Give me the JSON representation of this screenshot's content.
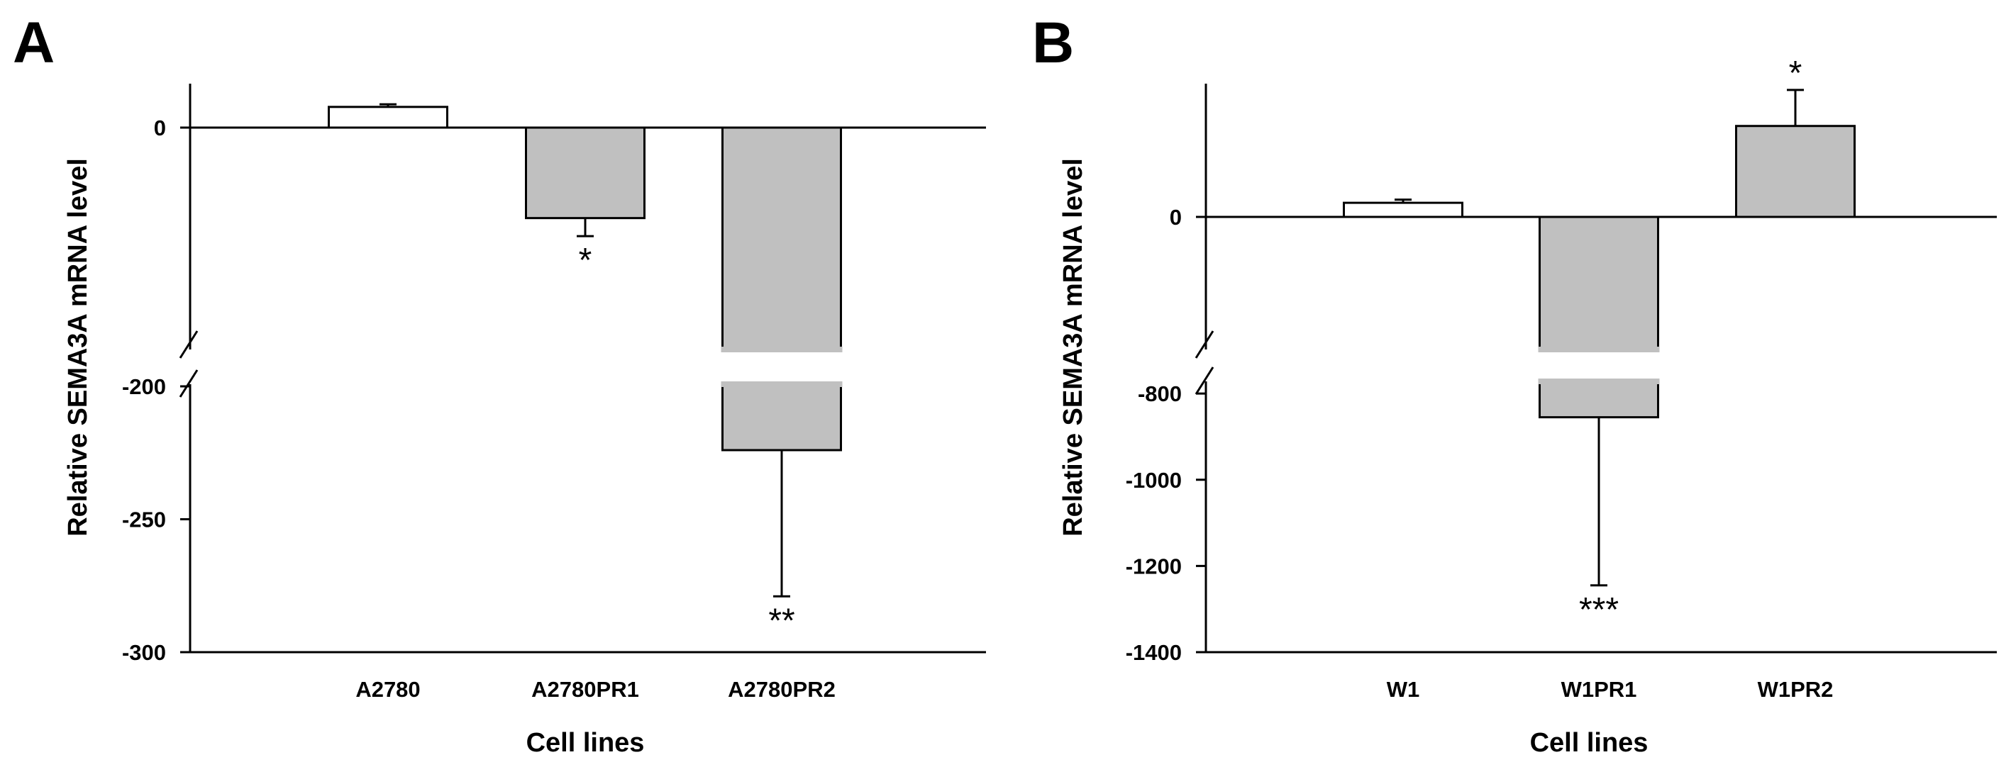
{
  "chart_data": [
    {
      "panel": "A",
      "type": "bar",
      "xlabel": "Cell lines",
      "ylabel": "Relative SEMA3A mRNA level",
      "categories": [
        "A2780",
        "A2780PR1",
        "A2780PR2"
      ],
      "values": [
        8,
        -35,
        -224
      ],
      "errors": [
        1,
        7,
        55
      ],
      "significance": [
        "",
        "*",
        "**"
      ],
      "colors": [
        "#ffffff",
        "#c0c0c0",
        "#c0c0c0"
      ],
      "y_ticks": [
        "0",
        "-200",
        "-250",
        "-300"
      ],
      "broken_axis": {
        "upper": [
          -85,
          17
        ],
        "lower": [
          -300,
          -200
        ]
      }
    },
    {
      "panel": "B",
      "type": "bar",
      "xlabel": "Cell lines",
      "ylabel": "Relative SEMA3A mRNA level",
      "categories": [
        "W1",
        "W1PR1",
        "W1PR2"
      ],
      "values": [
        9,
        -855,
        58
      ],
      "errors": [
        2,
        390,
        23
      ],
      "significance": [
        "",
        "***",
        "*"
      ],
      "colors": [
        "#ffffff",
        "#c0c0c0",
        "#c0c0c0"
      ],
      "y_ticks": [
        "0",
        "-800",
        "-1000",
        "-1200",
        "-1400"
      ],
      "broken_axis": {
        "upper": [
          -85,
          85
        ],
        "lower": [
          -1400,
          -780
        ]
      }
    }
  ]
}
